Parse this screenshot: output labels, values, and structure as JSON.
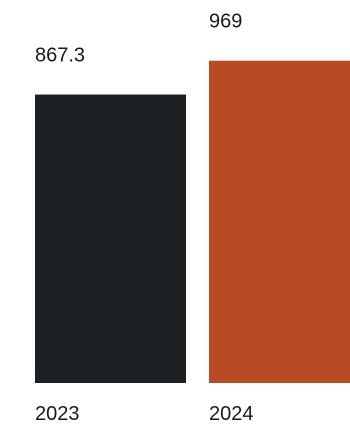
{
  "chart_data": {
    "type": "bar",
    "categories": [
      "2023",
      "2024"
    ],
    "values": [
      867.3,
      969
    ],
    "value_labels": [
      "867.3",
      "969"
    ],
    "colors": [
      "#1c2022",
      "#b84a26"
    ],
    "ylim": [
      0,
      1000
    ],
    "grid": false,
    "legend": "none"
  }
}
